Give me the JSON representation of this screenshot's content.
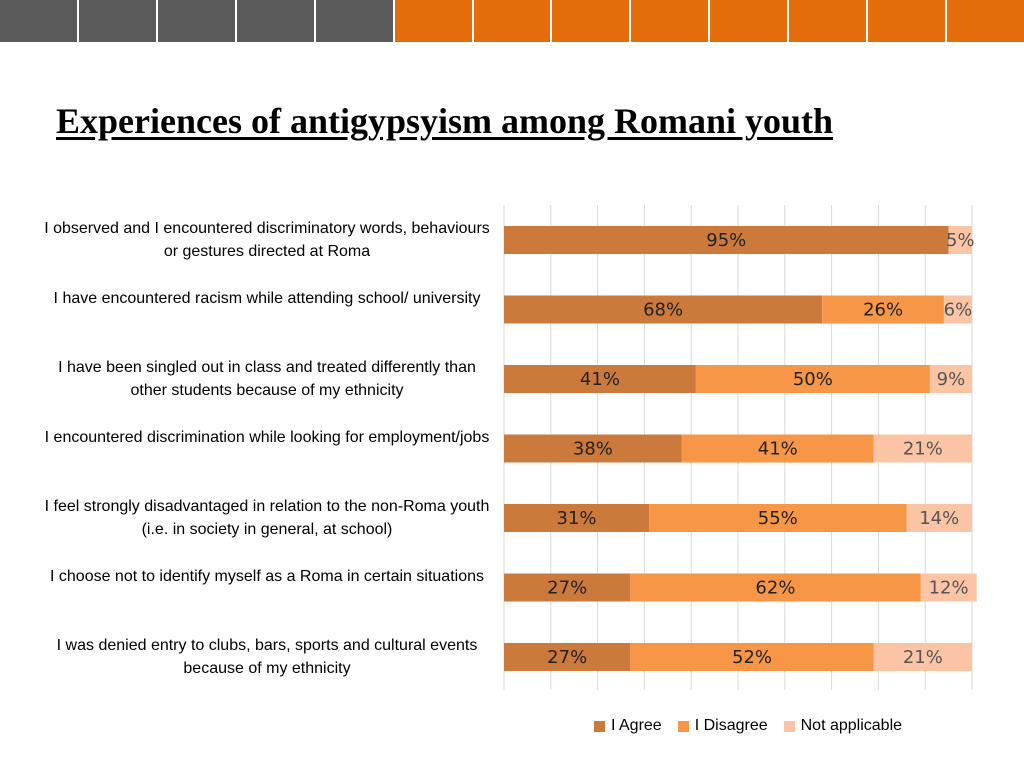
{
  "title": "Experiences of antigypsyism among Romani youth",
  "header_bar": {
    "segments": 13,
    "gray_segments": 5,
    "colors": {
      "gray": "#5a5a5a",
      "orange": "#e46c0a"
    }
  },
  "chart_data": {
    "type": "bar",
    "orientation": "horizontal",
    "stacked": "percent",
    "title": "",
    "categories": [
      "I observed and I encountered discriminatory words, behaviours or gestures directed at Roma",
      "I have encountered racism while attending school/ university",
      "I have been singled out in class and treated differently than other students because of my ethnicity",
      "I encountered discrimination while looking for employment/jobs",
      "I feel strongly disadvantaged in relation to the non-Roma youth (i.e. in society in general, at school)",
      "I choose not to identify myself as a Roma in certain situations",
      "I was denied entry to clubs, bars, sports and cultural events because of my ethnicity"
    ],
    "series": [
      {
        "name": "I Agree",
        "color": "#cc7a3c",
        "values": [
          95,
          68,
          41,
          38,
          31,
          27,
          27
        ]
      },
      {
        "name": "I Disagree",
        "color": "#f79646",
        "values": [
          null,
          26,
          50,
          41,
          55,
          62,
          52
        ]
      },
      {
        "name": "Not applicable",
        "color": "#fbc4a4",
        "values": [
          5,
          6,
          9,
          21,
          14,
          12,
          21
        ]
      }
    ],
    "data_labels": [
      [
        "95%",
        "",
        "5%"
      ],
      [
        "68%",
        "26%",
        "6%"
      ],
      [
        "41%",
        "50%",
        "9%"
      ],
      [
        "38%",
        "41%",
        "21%"
      ],
      [
        "31%",
        "55%",
        "14%"
      ],
      [
        "27%",
        "62%",
        "12%"
      ],
      [
        "27%",
        "52%",
        "21%"
      ]
    ],
    "label_colors": [
      "#222222",
      "#222222",
      "#555555"
    ],
    "xlim": [
      0,
      100
    ],
    "grid": true,
    "legend_position": "bottom"
  }
}
